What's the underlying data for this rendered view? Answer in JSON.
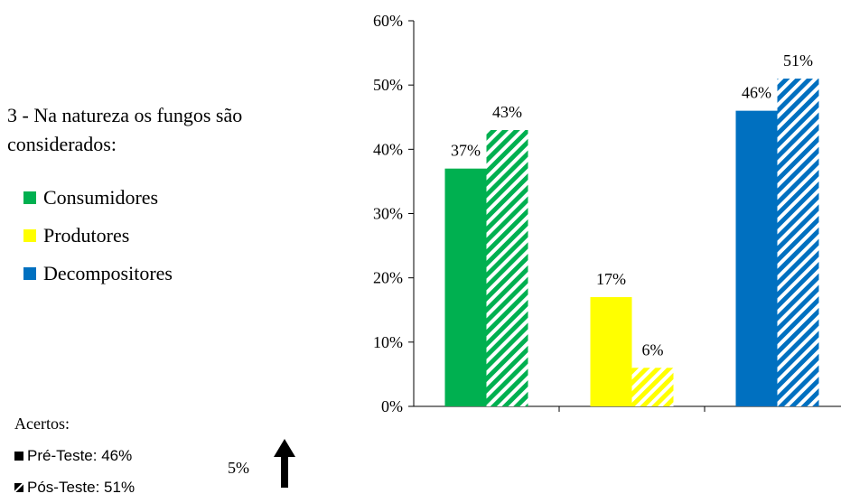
{
  "question": "3 - Na natureza os fungos são considerados:",
  "legend": [
    {
      "label": "Consumidores",
      "color": "#00b050"
    },
    {
      "label": "Produtores",
      "color": "#ffff00"
    },
    {
      "label": "Decompositores",
      "color": "#0070c0"
    }
  ],
  "acertos": {
    "title": "Acertos:",
    "pre": "Pré-Teste: 46%",
    "pos": "Pós-Teste: 51%",
    "difference": "5%",
    "arrow_icon": "arrow-up-icon"
  },
  "chart_data": {
    "type": "bar",
    "categories": [
      "Consumidores",
      "Produtores",
      "Decompositores"
    ],
    "colors": [
      "#00b050",
      "#ffff00",
      "#0070c0"
    ],
    "series": [
      {
        "name": "Pré-Teste",
        "values": [
          37,
          17,
          46
        ],
        "pattern": "solid"
      },
      {
        "name": "Pós-Teste",
        "values": [
          43,
          6,
          51
        ],
        "pattern": "diagonal-hatch"
      }
    ],
    "data_labels": {
      "Pré-Teste": [
        "37%",
        "17%",
        "46%"
      ],
      "Pós-Teste": [
        "43%",
        "6%",
        "51%"
      ]
    },
    "ylim": [
      0,
      60
    ],
    "yticks": [
      "0%",
      "10%",
      "20%",
      "30%",
      "40%",
      "50%",
      "60%"
    ],
    "grid": false
  }
}
